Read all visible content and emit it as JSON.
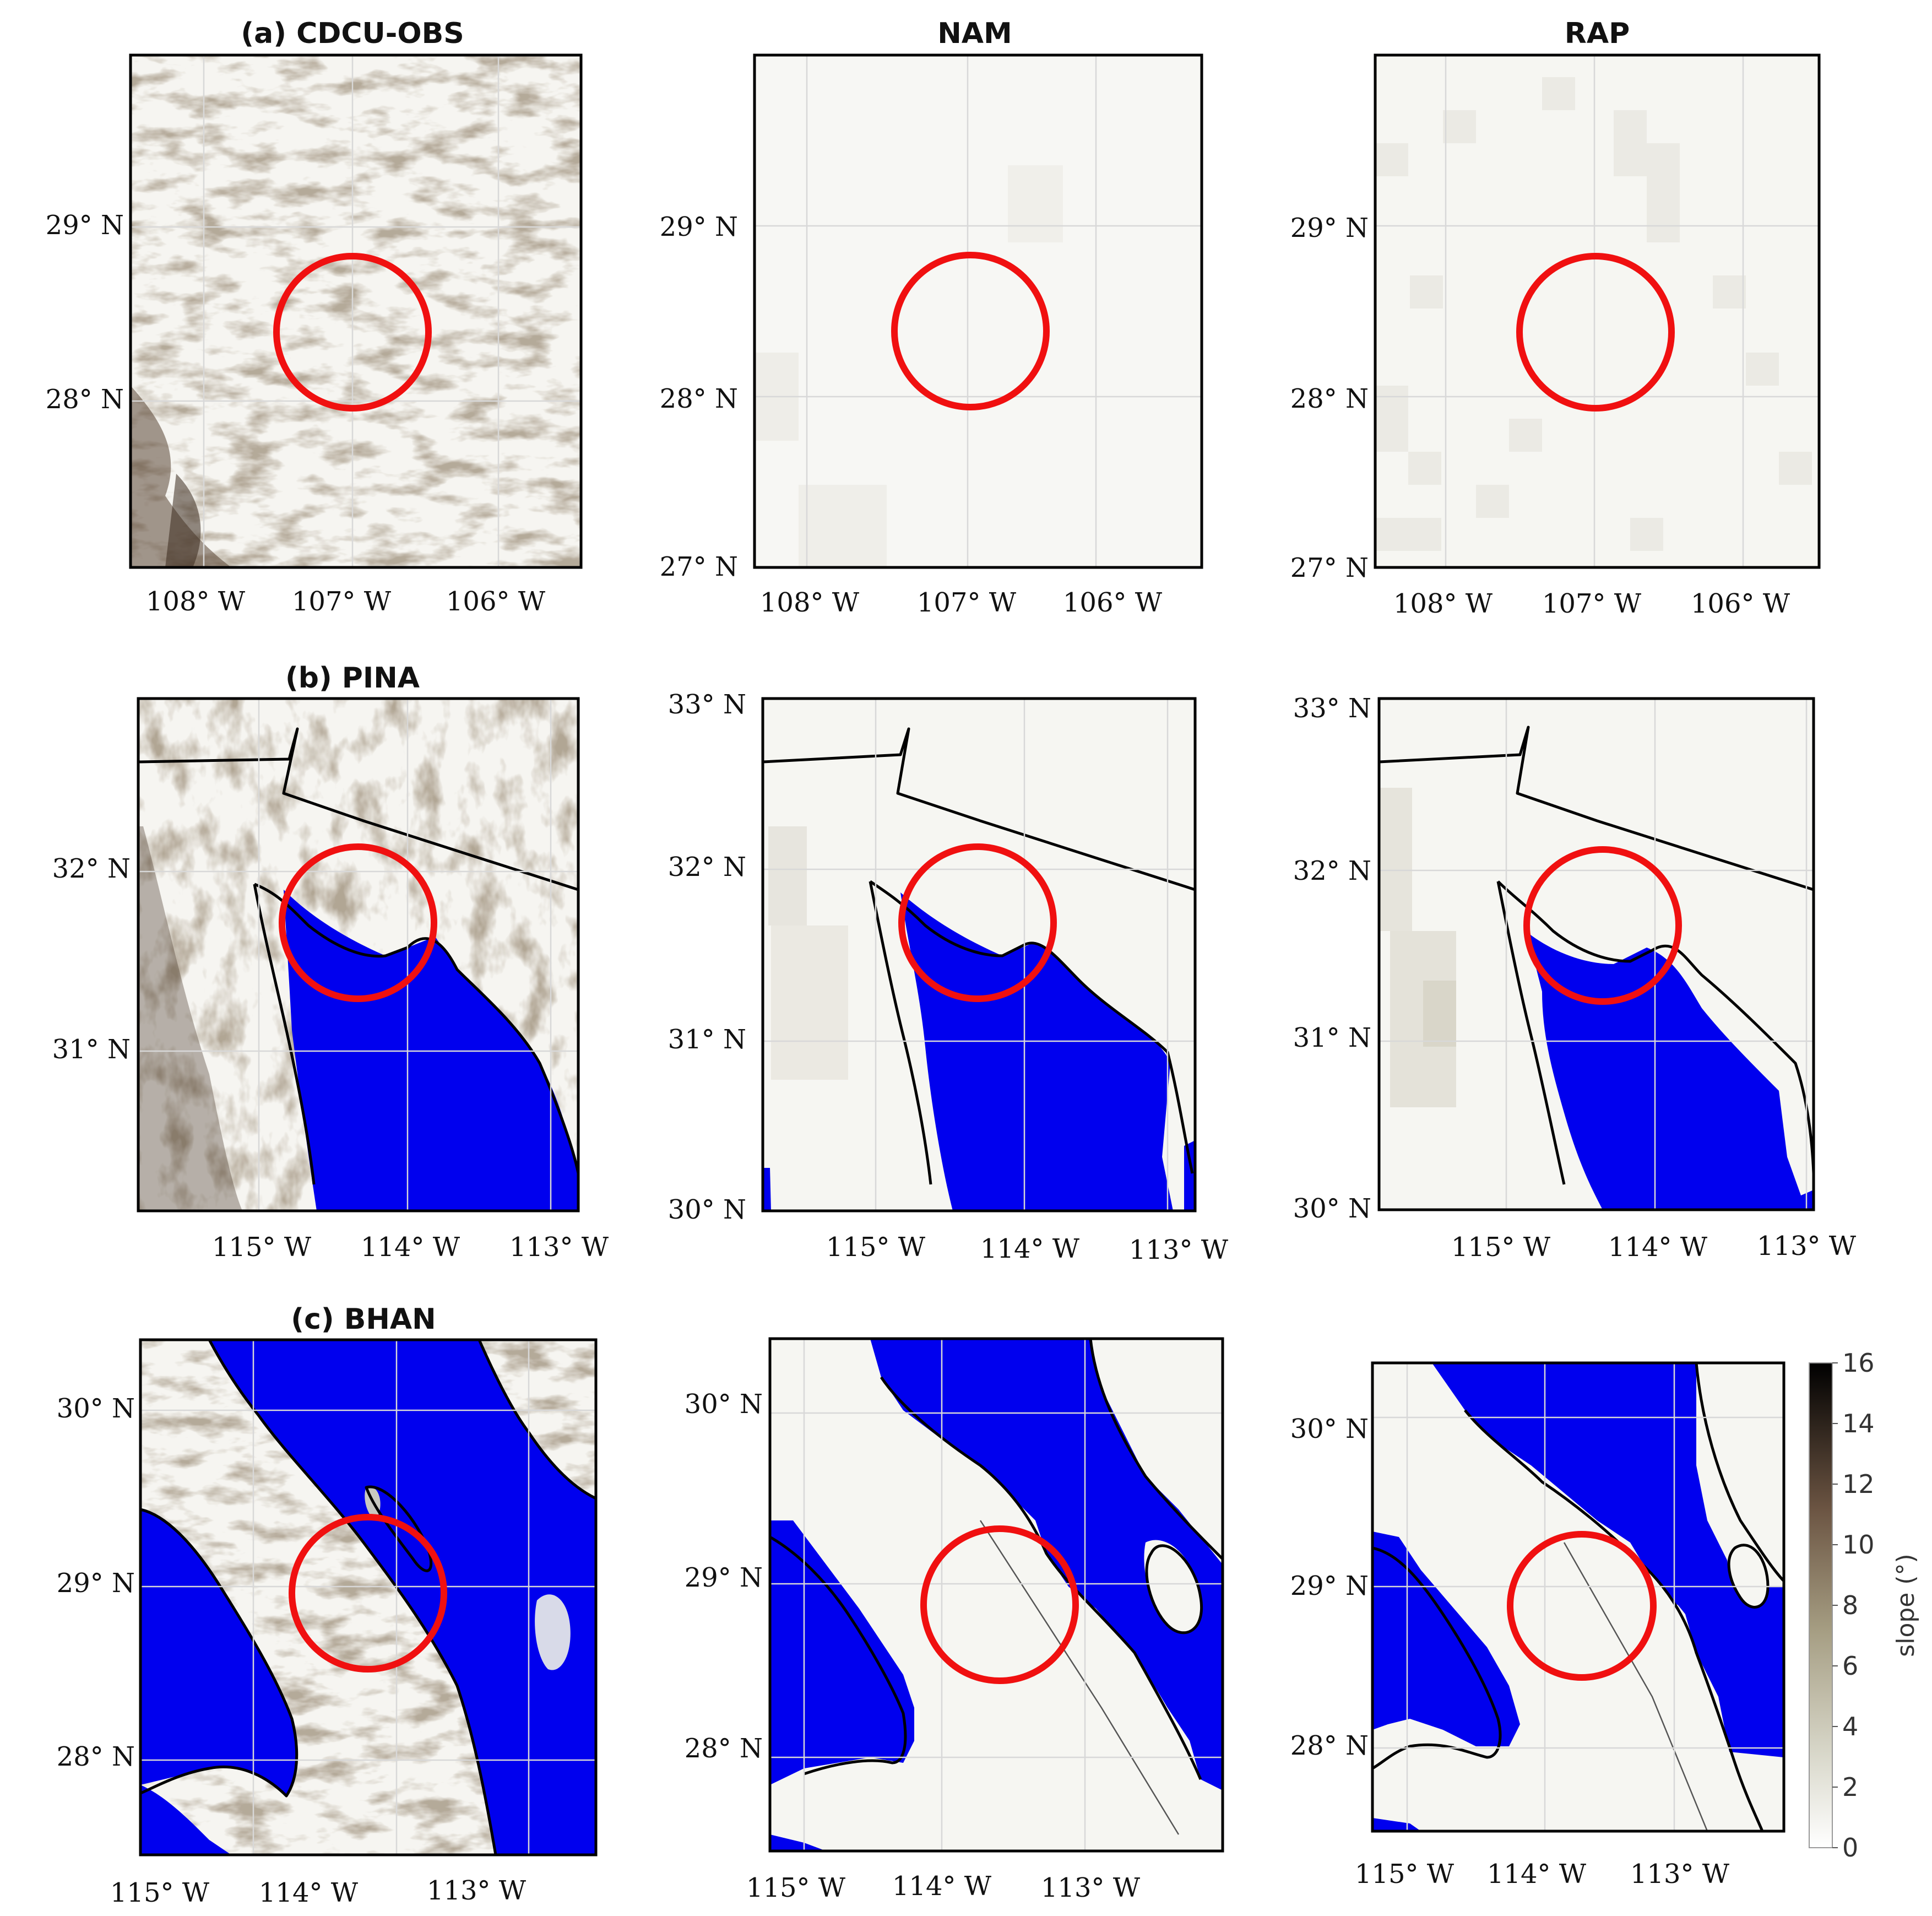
{
  "rows": [
    {
      "id": "a",
      "panels": [
        {
          "title": "(a) CDCU-OBS",
          "lat_ticks": [
            "29° N",
            "28° N"
          ],
          "lon_ticks": [
            "108° W",
            "107° W",
            "106° W"
          ]
        },
        {
          "title": "NAM",
          "lat_ticks": [
            "29° N",
            "28° N",
            "27° N"
          ],
          "lon_ticks": [
            "108° W",
            "107° W",
            "106° W"
          ]
        },
        {
          "title": "RAP",
          "lat_ticks": [
            "29° N",
            "28° N",
            "27° N"
          ],
          "lon_ticks": [
            "108° W",
            "107° W",
            "106° W"
          ]
        }
      ]
    },
    {
      "id": "b",
      "panels": [
        {
          "title": "(b) PINA",
          "lat_ticks": [
            "32° N",
            "31° N"
          ],
          "lon_ticks": [
            "115° W",
            "114° W",
            "113° W"
          ]
        },
        {
          "title": "",
          "lat_ticks": [
            "33° N",
            "32° N",
            "31° N",
            "30° N"
          ],
          "lon_ticks": [
            "115° W",
            "114° W",
            "113° W"
          ]
        },
        {
          "title": "",
          "lat_ticks": [
            "33° N",
            "32° N",
            "31° N",
            "30° N"
          ],
          "lon_ticks": [
            "115° W",
            "114° W",
            "113° W"
          ]
        }
      ]
    },
    {
      "id": "c",
      "panels": [
        {
          "title": "(c) BHAN",
          "lat_ticks": [
            "30° N",
            "29° N",
            "28° N"
          ],
          "lon_ticks": [
            "115° W",
            "114° W",
            "113° W"
          ]
        },
        {
          "title": "",
          "lat_ticks": [
            "30° N",
            "29° N",
            "28° N"
          ],
          "lon_ticks": [
            "115° W",
            "114° W",
            "113° W"
          ]
        },
        {
          "title": "",
          "lat_ticks": [
            "30° N",
            "29° N",
            "28° N"
          ],
          "lon_ticks": [
            "115° W",
            "114° W",
            "113° W"
          ]
        }
      ]
    }
  ],
  "colorbar": {
    "label": "slope (°)",
    "ticks": [
      "16",
      "14",
      "12",
      "10",
      "8",
      "6",
      "4",
      "2",
      "0"
    ],
    "range": [
      0,
      16
    ],
    "colors": [
      "#ffffff",
      "#b4b39e",
      "#6e5a44",
      "#000000"
    ]
  },
  "colors": {
    "water": "#0000ee",
    "circle": "#f01010",
    "terrain_light": "#f4f3ef",
    "terrain_dark": "#4a3a2a"
  }
}
